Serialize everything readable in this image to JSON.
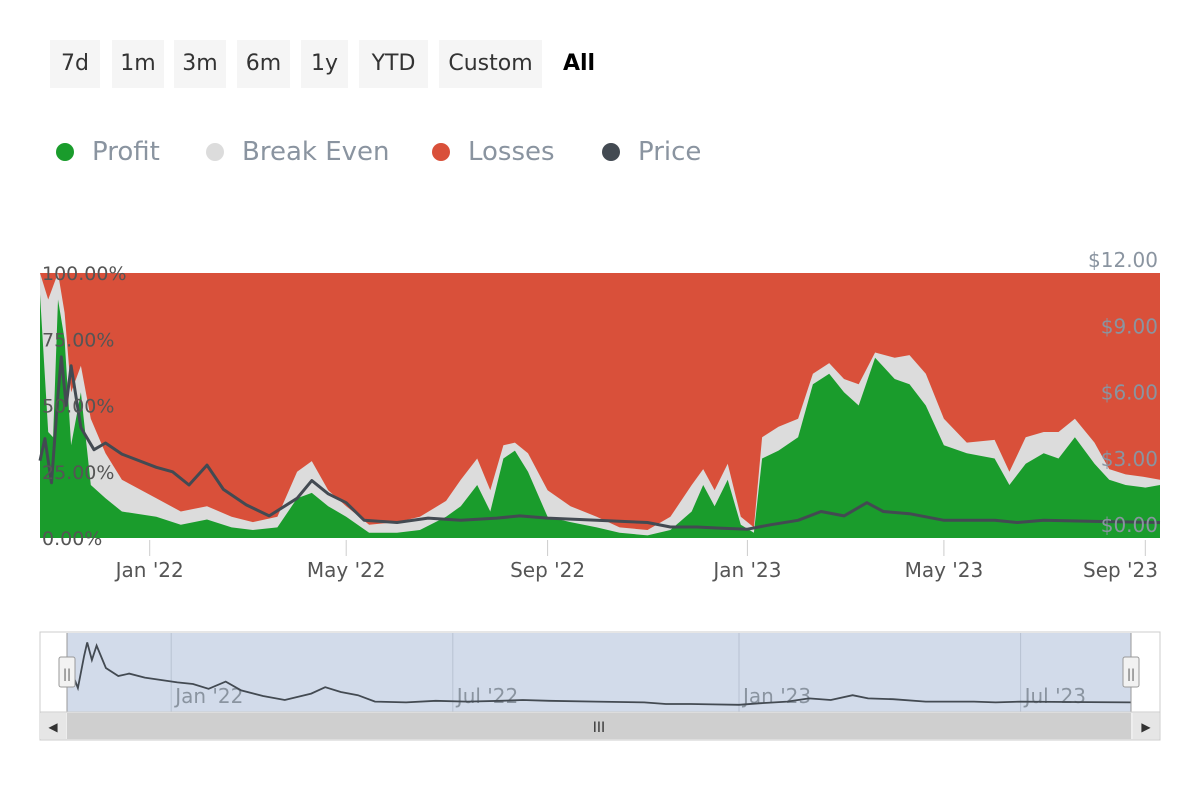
{
  "range_selector": {
    "buttons": [
      "7d",
      "1m",
      "3m",
      "6m",
      "1y",
      "YTD",
      "Custom",
      "All"
    ],
    "active": "All"
  },
  "legend": [
    {
      "label": "Profit",
      "color": "#1a9c2c"
    },
    {
      "label": "Break Even",
      "color": "#dcdcdc"
    },
    {
      "label": "Losses",
      "color": "#d9503a"
    },
    {
      "label": "Price",
      "color": "#434a52"
    }
  ],
  "colors": {
    "profit": "#1a9c2c",
    "break_even": "#dcdcdc",
    "losses": "#d9503a",
    "price": "#434a52",
    "navigator_bg": "#d2dbea",
    "axis_text": "#8a94a0"
  },
  "chart_data": {
    "type": "area",
    "stacked": true,
    "left_axis": {
      "ticks": [
        "0.00%",
        "25.00%",
        "50.00%",
        "75.00%",
        "100.00%"
      ],
      "range": [
        0,
        100
      ]
    },
    "right_axis": {
      "ticks": [
        "$0.00",
        "$3.00",
        "$6.00",
        "$9.00",
        "$12.00"
      ],
      "range": [
        0,
        12
      ]
    },
    "x_axis": {
      "ticks": [
        "Jan '22",
        "May '22",
        "Sep '22",
        "Jan '23",
        "May '23",
        "Sep '23"
      ],
      "range": [
        "2021-10-26",
        "2023-09-10"
      ]
    },
    "series": [
      {
        "name": "Profit",
        "points": [
          [
            "2021-10-26",
            92
          ],
          [
            "2021-10-31",
            40
          ],
          [
            "2021-11-03",
            38
          ],
          [
            "2021-11-06",
            90
          ],
          [
            "2021-11-10",
            75
          ],
          [
            "2021-11-14",
            35
          ],
          [
            "2021-11-20",
            55
          ],
          [
            "2021-11-26",
            20
          ],
          [
            "2021-12-05",
            15
          ],
          [
            "2021-12-15",
            10
          ],
          [
            "2022-01-05",
            8
          ],
          [
            "2022-01-20",
            5
          ],
          [
            "2022-02-05",
            7
          ],
          [
            "2022-02-20",
            4
          ],
          [
            "2022-03-05",
            3
          ],
          [
            "2022-03-20",
            4
          ],
          [
            "2022-04-01",
            15
          ],
          [
            "2022-04-10",
            17
          ],
          [
            "2022-04-20",
            12
          ],
          [
            "2022-05-01",
            8
          ],
          [
            "2022-05-15",
            2
          ],
          [
            "2022-06-01",
            2
          ],
          [
            "2022-06-15",
            3
          ],
          [
            "2022-07-01",
            8
          ],
          [
            "2022-07-10",
            12
          ],
          [
            "2022-07-20",
            20
          ],
          [
            "2022-07-28",
            10
          ],
          [
            "2022-08-05",
            30
          ],
          [
            "2022-08-12",
            33
          ],
          [
            "2022-08-20",
            25
          ],
          [
            "2022-09-01",
            8
          ],
          [
            "2022-09-15",
            6
          ],
          [
            "2022-10-01",
            4
          ],
          [
            "2022-10-15",
            2
          ],
          [
            "2022-11-01",
            1
          ],
          [
            "2022-11-15",
            3
          ],
          [
            "2022-11-28",
            10
          ],
          [
            "2022-12-05",
            20
          ],
          [
            "2022-12-12",
            12
          ],
          [
            "2022-12-20",
            22
          ],
          [
            "2022-12-28",
            5
          ],
          [
            "2023-01-05",
            2
          ],
          [
            "2023-01-10",
            30
          ],
          [
            "2023-01-20",
            33
          ],
          [
            "2023-02-01",
            38
          ],
          [
            "2023-02-10",
            58
          ],
          [
            "2023-02-20",
            62
          ],
          [
            "2023-03-01",
            55
          ],
          [
            "2023-03-10",
            50
          ],
          [
            "2023-03-20",
            68
          ],
          [
            "2023-04-01",
            60
          ],
          [
            "2023-04-10",
            58
          ],
          [
            "2023-04-20",
            50
          ],
          [
            "2023-05-01",
            35
          ],
          [
            "2023-05-15",
            32
          ],
          [
            "2023-06-01",
            30
          ],
          [
            "2023-06-10",
            20
          ],
          [
            "2023-06-20",
            28
          ],
          [
            "2023-07-01",
            32
          ],
          [
            "2023-07-10",
            30
          ],
          [
            "2023-07-20",
            38
          ],
          [
            "2023-08-01",
            28
          ],
          [
            "2023-08-10",
            22
          ],
          [
            "2023-08-20",
            20
          ],
          [
            "2023-09-01",
            19
          ],
          [
            "2023-09-10",
            20
          ]
        ]
      },
      {
        "name": "Break Even",
        "points": [
          [
            "2021-10-26",
            100
          ],
          [
            "2021-10-31",
            90
          ],
          [
            "2021-11-03",
            95
          ],
          [
            "2021-11-06",
            100
          ],
          [
            "2021-11-10",
            85
          ],
          [
            "2021-11-14",
            55
          ],
          [
            "2021-11-20",
            65
          ],
          [
            "2021-11-26",
            45
          ],
          [
            "2021-12-05",
            32
          ],
          [
            "2021-12-15",
            22
          ],
          [
            "2022-01-05",
            15
          ],
          [
            "2022-01-20",
            10
          ],
          [
            "2022-02-05",
            12
          ],
          [
            "2022-02-20",
            8
          ],
          [
            "2022-03-05",
            6
          ],
          [
            "2022-03-20",
            8
          ],
          [
            "2022-04-01",
            25
          ],
          [
            "2022-04-10",
            29
          ],
          [
            "2022-04-20",
            18
          ],
          [
            "2022-05-01",
            12
          ],
          [
            "2022-05-15",
            5
          ],
          [
            "2022-06-01",
            6
          ],
          [
            "2022-06-15",
            8
          ],
          [
            "2022-07-01",
            14
          ],
          [
            "2022-07-10",
            22
          ],
          [
            "2022-07-20",
            30
          ],
          [
            "2022-07-28",
            18
          ],
          [
            "2022-08-05",
            35
          ],
          [
            "2022-08-12",
            36
          ],
          [
            "2022-08-20",
            32
          ],
          [
            "2022-09-01",
            18
          ],
          [
            "2022-09-15",
            12
          ],
          [
            "2022-10-01",
            8
          ],
          [
            "2022-10-15",
            4
          ],
          [
            "2022-11-01",
            3
          ],
          [
            "2022-11-15",
            8
          ],
          [
            "2022-11-28",
            20
          ],
          [
            "2022-12-05",
            26
          ],
          [
            "2022-12-12",
            18
          ],
          [
            "2022-12-20",
            28
          ],
          [
            "2022-12-28",
            8
          ],
          [
            "2023-01-05",
            4
          ],
          [
            "2023-01-10",
            38
          ],
          [
            "2023-01-20",
            42
          ],
          [
            "2023-02-01",
            45
          ],
          [
            "2023-02-10",
            62
          ],
          [
            "2023-02-20",
            66
          ],
          [
            "2023-03-01",
            60
          ],
          [
            "2023-03-10",
            58
          ],
          [
            "2023-03-20",
            70
          ],
          [
            "2023-04-01",
            68
          ],
          [
            "2023-04-10",
            69
          ],
          [
            "2023-04-20",
            62
          ],
          [
            "2023-05-01",
            45
          ],
          [
            "2023-05-15",
            36
          ],
          [
            "2023-06-01",
            37
          ],
          [
            "2023-06-10",
            25
          ],
          [
            "2023-06-20",
            38
          ],
          [
            "2023-07-01",
            40
          ],
          [
            "2023-07-10",
            40
          ],
          [
            "2023-07-20",
            45
          ],
          [
            "2023-08-01",
            36
          ],
          [
            "2023-08-10",
            26
          ],
          [
            "2023-08-20",
            24
          ],
          [
            "2023-09-01",
            23
          ],
          [
            "2023-09-10",
            22
          ]
        ]
      },
      {
        "name": "Losses",
        "fill_to": 100
      },
      {
        "name": "Price",
        "axis": "right",
        "points": [
          [
            "2021-10-26",
            3.5
          ],
          [
            "2021-10-29",
            4.5
          ],
          [
            "2021-11-02",
            2.5
          ],
          [
            "2021-11-06",
            6.5
          ],
          [
            "2021-11-08",
            8.2
          ],
          [
            "2021-11-11",
            6.0
          ],
          [
            "2021-11-14",
            7.8
          ],
          [
            "2021-11-20",
            5.0
          ],
          [
            "2021-11-28",
            4.0
          ],
          [
            "2021-12-05",
            4.3
          ],
          [
            "2021-12-15",
            3.8
          ],
          [
            "2022-01-05",
            3.2
          ],
          [
            "2022-01-15",
            3.0
          ],
          [
            "2022-01-25",
            2.4
          ],
          [
            "2022-02-05",
            3.3
          ],
          [
            "2022-02-15",
            2.2
          ],
          [
            "2022-03-01",
            1.5
          ],
          [
            "2022-03-15",
            1.0
          ],
          [
            "2022-04-01",
            1.8
          ],
          [
            "2022-04-10",
            2.6
          ],
          [
            "2022-04-20",
            2.0
          ],
          [
            "2022-05-01",
            1.6
          ],
          [
            "2022-05-12",
            0.8
          ],
          [
            "2022-06-01",
            0.7
          ],
          [
            "2022-06-20",
            0.9
          ],
          [
            "2022-07-10",
            0.8
          ],
          [
            "2022-08-01",
            0.9
          ],
          [
            "2022-08-15",
            1.0
          ],
          [
            "2022-09-01",
            0.9
          ],
          [
            "2022-10-01",
            0.8
          ],
          [
            "2022-11-01",
            0.7
          ],
          [
            "2022-11-15",
            0.5
          ],
          [
            "2022-12-01",
            0.5
          ],
          [
            "2022-12-15",
            0.45
          ],
          [
            "2023-01-01",
            0.4
          ],
          [
            "2023-01-15",
            0.6
          ],
          [
            "2023-02-01",
            0.8
          ],
          [
            "2023-02-15",
            1.2
          ],
          [
            "2023-03-01",
            1.0
          ],
          [
            "2023-03-15",
            1.6
          ],
          [
            "2023-03-25",
            1.2
          ],
          [
            "2023-04-10",
            1.1
          ],
          [
            "2023-05-01",
            0.8
          ],
          [
            "2023-06-01",
            0.8
          ],
          [
            "2023-06-15",
            0.7
          ],
          [
            "2023-07-01",
            0.8
          ],
          [
            "2023-08-01",
            0.75
          ],
          [
            "2023-09-10",
            0.7
          ]
        ]
      }
    ]
  },
  "navigator": {
    "ticks": [
      "Jan '22",
      "Jul '22",
      "Jan '23",
      "Jul '23"
    ],
    "range": [
      "2021-10-26",
      "2023-09-10"
    ],
    "scroll_grip": "III",
    "left_arrow": "◀",
    "right_arrow": "▶",
    "handle_grip": "||"
  }
}
